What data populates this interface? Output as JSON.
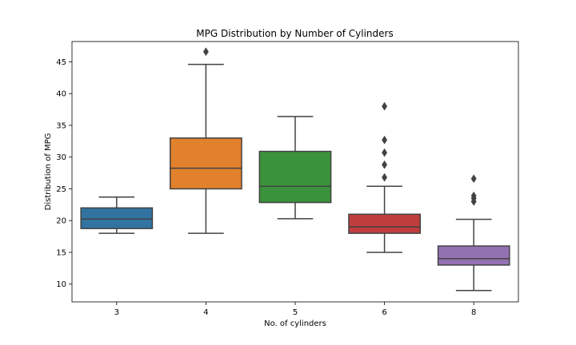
{
  "chart_data": {
    "type": "box",
    "title": "MPG Distribution by Number of Cylinders",
    "xlabel": "No. of cylinders",
    "ylabel": "Distribution of MPG",
    "ylim": [
      7.2,
      48.2
    ],
    "yticks": [
      10,
      15,
      20,
      25,
      30,
      35,
      40,
      45
    ],
    "categories": [
      "3",
      "4",
      "5",
      "6",
      "8"
    ],
    "boxes": [
      {
        "category": "3",
        "whisker_low": 18.0,
        "q1": 18.75,
        "median": 20.25,
        "q3": 22.0,
        "whisker_high": 23.7,
        "outliers": [],
        "color": "#3274a1"
      },
      {
        "category": "4",
        "whisker_low": 18.0,
        "q1": 25.0,
        "median": 28.25,
        "q3": 33.0,
        "whisker_high": 44.6,
        "outliers": [
          46.6
        ],
        "color": "#e1812c"
      },
      {
        "category": "5",
        "whisker_low": 20.3,
        "q1": 22.85,
        "median": 25.4,
        "q3": 30.9,
        "whisker_high": 36.4,
        "outliers": [],
        "color": "#3a923a"
      },
      {
        "category": "6",
        "whisker_low": 15.0,
        "q1": 18.0,
        "median": 19.0,
        "q3": 21.0,
        "whisker_high": 25.4,
        "outliers": [
          26.8,
          28.8,
          30.7,
          32.7,
          38.0
        ],
        "color": "#c03d3e"
      },
      {
        "category": "8",
        "whisker_low": 9.0,
        "q1": 13.0,
        "median": 14.0,
        "q3": 16.0,
        "whisker_high": 20.2,
        "outliers": [
          23.0,
          23.5,
          23.9,
          26.6
        ],
        "color": "#9372b2"
      }
    ],
    "grid": false,
    "legend": "none"
  }
}
